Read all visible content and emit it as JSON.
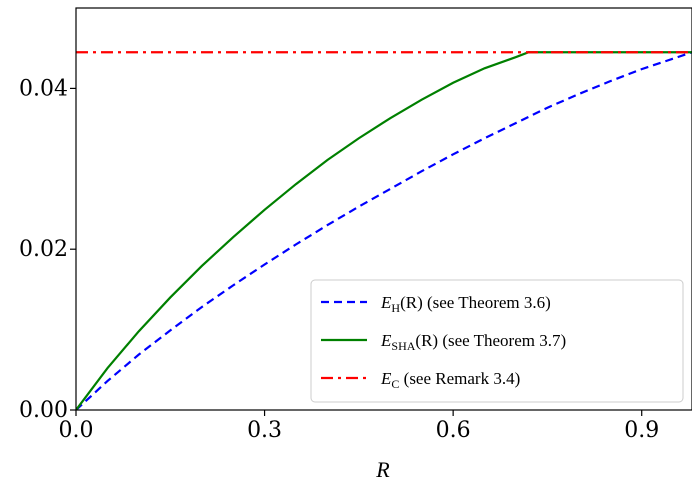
{
  "chart_data": {
    "type": "line",
    "xlabel": "R",
    "xlim": [
      0.0,
      0.98
    ],
    "ylim": [
      0.0,
      0.05
    ],
    "xticks": [
      0.0,
      0.3,
      0.6,
      0.9
    ],
    "xtick_labels": [
      "0.0",
      "0.3",
      "0.6",
      "0.9"
    ],
    "yticks": [
      0.0,
      0.02,
      0.04
    ],
    "ytick_labels": [
      "0.00",
      "0.02",
      "0.04"
    ],
    "grid": false,
    "legend_position": "lower-right",
    "series": [
      {
        "key": "EH",
        "legend": {
          "main": "E",
          "sub": "H",
          "tail": "(R) (see Theorem 3.6)"
        },
        "color": "#0000ff",
        "style": "dashed",
        "x": [
          0.0,
          0.05,
          0.1,
          0.15,
          0.2,
          0.25,
          0.3,
          0.35,
          0.4,
          0.45,
          0.5,
          0.55,
          0.6,
          0.65,
          0.7,
          0.75,
          0.8,
          0.85,
          0.9,
          0.95,
          0.98
        ],
        "y": [
          0.0,
          0.0036,
          0.0069,
          0.0099,
          0.0128,
          0.0155,
          0.0181,
          0.0206,
          0.023,
          0.0253,
          0.0275,
          0.0297,
          0.0318,
          0.0338,
          0.0357,
          0.0376,
          0.0393,
          0.0409,
          0.0424,
          0.0437,
          0.0445
        ]
      },
      {
        "key": "ESHA",
        "legend": {
          "main": "E",
          "sub": "SHA",
          "tail": "(R) (see Theorem 3.7)"
        },
        "color": "#008000",
        "style": "solid",
        "x": [
          0.0,
          0.05,
          0.1,
          0.15,
          0.2,
          0.25,
          0.3,
          0.35,
          0.4,
          0.45,
          0.5,
          0.55,
          0.6,
          0.65,
          0.7,
          0.72,
          0.75,
          0.8,
          0.85,
          0.9,
          0.95,
          0.98
        ],
        "y": [
          0.0,
          0.0052,
          0.0098,
          0.014,
          0.0179,
          0.0215,
          0.0249,
          0.0281,
          0.0311,
          0.0338,
          0.0363,
          0.0386,
          0.0407,
          0.0425,
          0.0439,
          0.0445,
          0.0445,
          0.0445,
          0.0445,
          0.0445,
          0.0445,
          0.0445
        ]
      },
      {
        "key": "EC",
        "legend": {
          "main": "E",
          "sub": "C",
          "tail": " (see Remark 3.4)"
        },
        "color": "#ff0000",
        "style": "dashdot",
        "x": [
          0.0,
          0.98
        ],
        "y": [
          0.0445,
          0.0445
        ]
      }
    ]
  }
}
